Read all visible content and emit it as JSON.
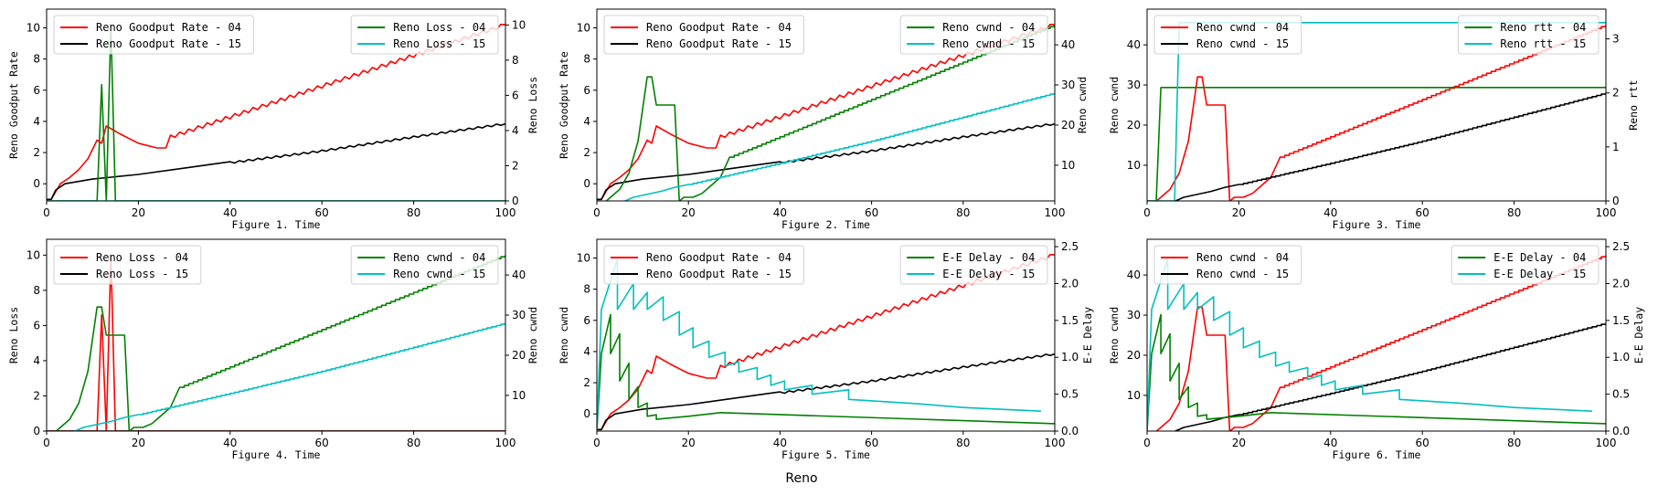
{
  "suptitle": "Reno",
  "colors": {
    "s04_left": "#ff0000",
    "s15_left": "#000000",
    "s04_right": "#008000",
    "s15_right": "#00bfbf"
  },
  "chart_data": [
    {
      "type": "line",
      "title": "",
      "xlabel": "Figure 1. Time",
      "ylabel": "Reno Goodput Rate",
      "ylabel_right": "Reno Loss",
      "xlim": [
        0,
        100
      ],
      "ylim": [
        -1.1,
        11.2
      ],
      "ylim_right": [
        0,
        10.9
      ],
      "xticks": [
        0,
        20,
        40,
        60,
        80,
        100
      ],
      "yticks": [
        0,
        2,
        4,
        6,
        8,
        10
      ],
      "yticks_right": [
        0,
        2,
        4,
        6,
        8,
        10
      ],
      "ytick_labels_right": [
        "0",
        "2",
        "4",
        "6",
        "8",
        "10"
      ],
      "legend_left": {
        "placement": "upper-left",
        "entries": [
          "Reno Goodput Rate - 04",
          "Reno Goodput Rate - 15"
        ]
      },
      "legend_right": {
        "placement": "upper-right",
        "entries": [
          "Reno Loss - 04",
          "Reno Loss - 15"
        ]
      },
      "series": [
        {
          "name": "Reno Goodput Rate - 04",
          "axis": "left",
          "color": "s04_left",
          "kind": "goodput04"
        },
        {
          "name": "Reno Goodput Rate - 15",
          "axis": "left",
          "color": "s15_left",
          "kind": "goodput15"
        },
        {
          "name": "Reno Loss - 04",
          "axis": "right",
          "color": "s04_right",
          "kind": "points",
          "x": [
            0,
            10,
            11,
            12,
            13,
            14,
            15,
            16,
            100
          ],
          "y": [
            0,
            0,
            0,
            6.6,
            0,
            10,
            0,
            0,
            0
          ]
        },
        {
          "name": "Reno Loss - 15",
          "axis": "right",
          "color": "s15_right",
          "kind": "points",
          "x": [
            0,
            100
          ],
          "y": [
            0,
            0
          ]
        }
      ]
    },
    {
      "type": "line",
      "xlabel": "Figure 2. Time",
      "ylabel": "Reno Goodput Rate",
      "ylabel_right": "Reno cwnd",
      "xlim": [
        0,
        100
      ],
      "ylim": [
        -1.1,
        11.2
      ],
      "ylim_right": [
        1.1,
        48.9
      ],
      "xticks": [
        0,
        20,
        40,
        60,
        80,
        100
      ],
      "yticks": [
        0,
        2,
        4,
        6,
        8,
        10
      ],
      "yticks_right": [
        10,
        20,
        30,
        40
      ],
      "ytick_labels_right": [
        "10",
        "20",
        "30",
        "40"
      ],
      "legend_left": {
        "placement": "upper-left",
        "entries": [
          "Reno Goodput Rate - 04",
          "Reno Goodput Rate - 15"
        ]
      },
      "legend_right": {
        "placement": "upper-right",
        "entries": [
          "Reno cwnd - 04",
          "Reno cwnd - 15"
        ]
      },
      "series": [
        {
          "name": "Reno Goodput Rate - 04",
          "axis": "left",
          "color": "s04_left",
          "kind": "goodput04"
        },
        {
          "name": "Reno Goodput Rate - 15",
          "axis": "left",
          "color": "s15_left",
          "kind": "goodput15"
        },
        {
          "name": "Reno cwnd - 04",
          "axis": "right",
          "color": "s04_right",
          "kind": "cwnd04"
        },
        {
          "name": "Reno cwnd - 15",
          "axis": "right",
          "color": "s15_right",
          "kind": "cwnd15"
        }
      ]
    },
    {
      "type": "line",
      "xlabel": "Figure 3. Time",
      "ylabel": "Reno cwnd",
      "ylabel_right": "Reno rtt",
      "xlim": [
        0,
        100
      ],
      "ylim": [
        1.1,
        48.9
      ],
      "ylim_right": [
        0,
        3.55
      ],
      "xticks": [
        0,
        20,
        40,
        60,
        80,
        100
      ],
      "yticks": [
        10,
        20,
        30,
        40
      ],
      "yticks_right": [
        0,
        1,
        2,
        3
      ],
      "ytick_labels_right": [
        "0",
        "1",
        "2",
        "3"
      ],
      "legend_left": {
        "placement": "upper-left",
        "entries": [
          "Reno cwnd - 04",
          "Reno cwnd - 15"
        ]
      },
      "legend_right": {
        "placement": "upper-right",
        "entries": [
          "Reno rtt - 04",
          "Reno rtt - 15"
        ]
      },
      "series": [
        {
          "name": "Reno cwnd - 04",
          "axis": "left",
          "color": "s04_left",
          "kind": "cwnd04"
        },
        {
          "name": "Reno cwnd - 15",
          "axis": "left",
          "color": "s15_left",
          "kind": "cwnd15"
        },
        {
          "name": "Reno rtt - 04",
          "axis": "right",
          "color": "s04_right",
          "kind": "points",
          "x": [
            0,
            2,
            3,
            100
          ],
          "y": [
            0,
            0,
            2.1,
            2.1
          ]
        },
        {
          "name": "Reno rtt - 15",
          "axis": "right",
          "color": "s15_right",
          "kind": "points",
          "x": [
            0,
            6,
            7,
            100
          ],
          "y": [
            0,
            0,
            3.3,
            3.3
          ]
        }
      ]
    },
    {
      "type": "line",
      "xlabel": "Figure 4. Time",
      "ylabel": "Reno Loss",
      "ylabel_right": "Reno cwnd",
      "xlim": [
        0,
        100
      ],
      "ylim": [
        0,
        10.9
      ],
      "ylim_right": [
        1.1,
        48.9
      ],
      "xticks": [
        0,
        20,
        40,
        60,
        80,
        100
      ],
      "yticks": [
        0,
        2,
        4,
        6,
        8,
        10
      ],
      "yticks_right": [
        10,
        20,
        30,
        40
      ],
      "ytick_labels_right": [
        "10",
        "20",
        "30",
        "40"
      ],
      "legend_left": {
        "placement": "upper-left",
        "entries": [
          "Reno Loss - 04",
          "Reno Loss - 15"
        ]
      },
      "legend_right": {
        "placement": "upper-right",
        "entries": [
          "Reno cwnd - 04",
          "Reno cwnd - 15"
        ]
      },
      "series": [
        {
          "name": "Reno Loss - 04",
          "axis": "left",
          "color": "s04_left",
          "kind": "points",
          "x": [
            0,
            10,
            11,
            12,
            13,
            14,
            15,
            16,
            100
          ],
          "y": [
            0,
            0,
            0,
            6.6,
            0,
            10,
            0,
            0,
            0
          ]
        },
        {
          "name": "Reno Loss - 15",
          "axis": "left",
          "color": "s15_left",
          "kind": "points",
          "x": [
            0,
            100
          ],
          "y": [
            0,
            0
          ]
        },
        {
          "name": "Reno cwnd - 04",
          "axis": "right",
          "color": "s04_right",
          "kind": "cwnd04"
        },
        {
          "name": "Reno cwnd - 15",
          "axis": "right",
          "color": "s15_right",
          "kind": "cwnd15"
        }
      ]
    },
    {
      "type": "line",
      "xlabel": "Figure 5. Time",
      "ylabel": "Reno cwnd",
      "ylabel_right": "E-E Delay",
      "xlim": [
        0,
        100
      ],
      "ylim": [
        -1.1,
        11.2
      ],
      "ylim_right": [
        0,
        2.6
      ],
      "xticks": [
        0,
        20,
        40,
        60,
        80,
        100
      ],
      "yticks": [
        0,
        2,
        4,
        6,
        8,
        10
      ],
      "yticks_right": [
        0,
        0.5,
        1.0,
        1.5,
        2.0,
        2.5
      ],
      "ytick_labels_right": [
        "0.0",
        "0.5",
        "1.0",
        "1.5",
        "2.0",
        "2.5"
      ],
      "legend_left": {
        "placement": "upper-left",
        "entries": [
          "Reno Goodput Rate - 04",
          "Reno Goodput Rate - 15"
        ]
      },
      "legend_right": {
        "placement": "upper-right",
        "entries": [
          "E-E Delay - 04",
          "E-E Delay - 15"
        ]
      },
      "series": [
        {
          "name": "Reno Goodput Rate - 04",
          "axis": "left",
          "color": "s04_left",
          "kind": "goodput04"
        },
        {
          "name": "Reno Goodput Rate - 15",
          "axis": "left",
          "color": "s15_left",
          "kind": "goodput15"
        },
        {
          "name": "E-E Delay - 04",
          "axis": "right",
          "color": "s04_right",
          "kind": "delay04"
        },
        {
          "name": "E-E Delay - 15",
          "axis": "right",
          "color": "s15_right",
          "kind": "delay15"
        }
      ]
    },
    {
      "type": "line",
      "xlabel": "Figure 6. Time",
      "ylabel": "Reno cwnd",
      "ylabel_right": "E-E Delay",
      "xlim": [
        0,
        100
      ],
      "ylim": [
        1.1,
        48.9
      ],
      "ylim_right": [
        0,
        2.6
      ],
      "xticks": [
        0,
        20,
        40,
        60,
        80,
        100
      ],
      "yticks": [
        10,
        20,
        30,
        40
      ],
      "yticks_right": [
        0,
        0.5,
        1.0,
        1.5,
        2.0,
        2.5
      ],
      "ytick_labels_right": [
        "0.0",
        "0.5",
        "1.0",
        "1.5",
        "2.0",
        "2.5"
      ],
      "legend_left": {
        "placement": "upper-left",
        "entries": [
          "Reno cwnd - 04",
          "Reno cwnd - 15"
        ]
      },
      "legend_right": {
        "placement": "upper-right",
        "entries": [
          "E-E Delay - 04",
          "E-E Delay - 15"
        ]
      },
      "series": [
        {
          "name": "Reno cwnd - 04",
          "axis": "left",
          "color": "s04_left",
          "kind": "cwnd04"
        },
        {
          "name": "Reno cwnd - 15",
          "axis": "left",
          "color": "s15_left",
          "kind": "cwnd15"
        },
        {
          "name": "E-E Delay - 04",
          "axis": "right",
          "color": "s04_right",
          "kind": "delay04"
        },
        {
          "name": "E-E Delay - 15",
          "axis": "right",
          "color": "s15_right",
          "kind": "delay15"
        }
      ]
    }
  ],
  "series_shapes": {
    "goodput04": {
      "x": [
        0,
        1,
        3,
        5,
        7,
        9,
        11,
        12,
        13,
        16,
        20,
        24,
        26,
        27,
        100
      ],
      "y": [
        -1,
        -1,
        0,
        0.4,
        0.9,
        1.6,
        2.8,
        2.6,
        3.7,
        3.2,
        2.6,
        2.3,
        2.3,
        3.0,
        10.2
      ]
    },
    "goodput15": {
      "x": [
        0,
        1,
        2,
        4,
        10,
        20,
        30,
        40,
        60,
        80,
        100
      ],
      "y": [
        -1,
        -1,
        -0.4,
        0,
        0.3,
        0.6,
        1.0,
        1.35,
        2.1,
        3.0,
        3.85
      ]
    },
    "cwnd04": {
      "x": [
        0,
        2,
        3,
        5,
        7,
        9,
        11,
        12,
        13,
        17,
        18,
        19,
        21,
        23,
        25,
        27,
        29,
        100
      ],
      "y": [
        1,
        1,
        2,
        4,
        8,
        16,
        32,
        32,
        25,
        25,
        1,
        2,
        2,
        3,
        5,
        7,
        12,
        45
      ]
    },
    "cwnd15": {
      "x": [
        0,
        6,
        8,
        14,
        17,
        20,
        40,
        60,
        80,
        100
      ],
      "y": [
        1,
        1,
        2,
        3.5,
        4.5,
        5.2,
        10.5,
        16,
        22,
        28
      ]
    },
    "delay04": {
      "x": [
        0,
        1,
        3,
        3,
        5,
        5,
        7,
        7,
        9,
        9,
        11,
        11,
        13,
        13,
        20,
        27,
        100
      ],
      "y": [
        0,
        1.05,
        1.58,
        1.05,
        1.32,
        0.68,
        0.92,
        0.43,
        0.6,
        0.32,
        0.38,
        0.2,
        0.22,
        0.16,
        0.2,
        0.25,
        0.1
      ]
    },
    "delay15": {
      "x": [
        0,
        1,
        4.5,
        4.5,
        8,
        8,
        11,
        11,
        14.5,
        14.5,
        18,
        18,
        21,
        21,
        24.5,
        24.5,
        28,
        28,
        31,
        31,
        35,
        35,
        38,
        38,
        41,
        41,
        47,
        47,
        55,
        55,
        70,
        80,
        97
      ],
      "y": [
        0,
        1.65,
        2.33,
        1.65,
        2.0,
        1.65,
        1.88,
        1.65,
        1.82,
        1.5,
        1.62,
        1.3,
        1.4,
        1.13,
        1.22,
        1.0,
        1.07,
        0.88,
        0.94,
        0.8,
        0.86,
        0.7,
        0.76,
        0.62,
        0.68,
        0.56,
        0.62,
        0.5,
        0.56,
        0.43,
        0.37,
        0.32,
        0.27
      ]
    }
  }
}
